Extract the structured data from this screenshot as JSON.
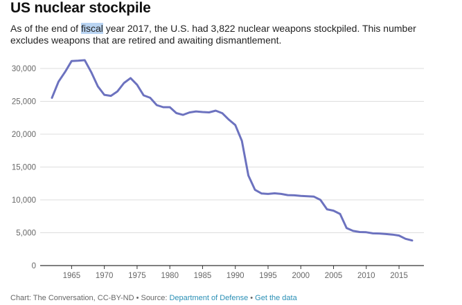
{
  "title": "US nuclear stockpile",
  "subtitle": {
    "before": "As of the end of ",
    "highlight": "fiscal",
    "after": " year 2017, the U.S. had 3,822 nuclear weapons stockpiled. This number excludes weapons that are retired and awaiting dismantlement."
  },
  "footer": {
    "credit": "Chart: The Conversation, CC-BY-ND",
    "separator1": " • Source: ",
    "source_link": "Department of Defense",
    "separator2": " • ",
    "data_link": "Get the data"
  },
  "colors": {
    "line": "#6c72bf",
    "grid": "#dddddd",
    "axis": "#333333",
    "link": "#2a8fb5"
  },
  "chart_data": {
    "type": "line",
    "title": "US nuclear stockpile",
    "xlabel": "",
    "ylabel": "",
    "xlim": [
      1960.2,
      2018.8
    ],
    "ylim": [
      0,
      30000
    ],
    "yticks": [
      0,
      5000,
      10000,
      15000,
      20000,
      25000,
      30000
    ],
    "ytick_labels": [
      "0",
      "5,000",
      "10,000",
      "15,000",
      "20,000",
      "25,000",
      "30,000"
    ],
    "xticks": [
      1965,
      1970,
      1975,
      1980,
      1985,
      1990,
      1995,
      2000,
      2005,
      2010,
      2015
    ],
    "xtick_labels": [
      "1965",
      "1970",
      "1975",
      "1980",
      "1985",
      "1990",
      "1995",
      "2000",
      "2005",
      "2010",
      "2015"
    ],
    "grid": true,
    "x": [
      1962,
      1963,
      1964,
      1965,
      1966,
      1967,
      1968,
      1969,
      1970,
      1971,
      1972,
      1973,
      1974,
      1975,
      1976,
      1977,
      1978,
      1979,
      1980,
      1981,
      1982,
      1983,
      1984,
      1985,
      1986,
      1987,
      1988,
      1989,
      1990,
      1991,
      1992,
      1993,
      1994,
      1995,
      1996,
      1997,
      1998,
      1999,
      2000,
      2001,
      2002,
      2003,
      2004,
      2005,
      2006,
      2007,
      2008,
      2009,
      2010,
      2011,
      2012,
      2013,
      2014,
      2015,
      2016,
      2017
    ],
    "values": [
      25540,
      27990,
      29460,
      31140,
      31180,
      31260,
      29440,
      27280,
      25990,
      25830,
      26520,
      27790,
      28540,
      27520,
      25910,
      25540,
      24420,
      24110,
      24100,
      23210,
      22940,
      23310,
      23460,
      23370,
      23320,
      23580,
      23200,
      22220,
      21390,
      18980,
      13710,
      11540,
      10980,
      10910,
      11000,
      10900,
      10730,
      10700,
      10600,
      10550,
      10500,
      10000,
      8570,
      8360,
      7850,
      5710,
      5270,
      5110,
      5070,
      4900,
      4880,
      4800,
      4720,
      4570,
      4070,
      3822
    ]
  }
}
